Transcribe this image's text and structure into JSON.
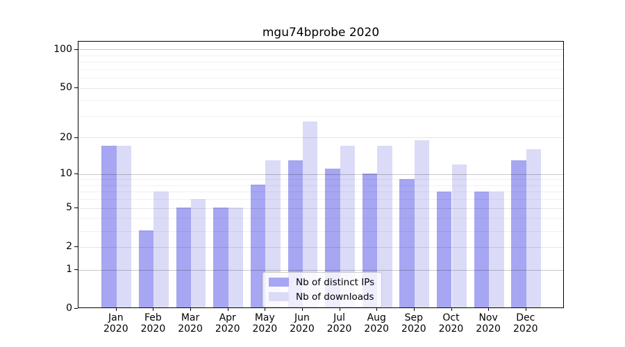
{
  "chart_data": {
    "type": "bar",
    "title": "mgu74bprobe 2020",
    "categories": [
      "Jan",
      "Feb",
      "Mar",
      "Apr",
      "May",
      "Jun",
      "Jul",
      "Aug",
      "Sep",
      "Oct",
      "Nov",
      "Dec"
    ],
    "x_year": "2020",
    "series": [
      {
        "name": "Nb of distinct IPs",
        "color": "#a6a6f2",
        "values": [
          17,
          3,
          5,
          5,
          8,
          13,
          11,
          10,
          9,
          7,
          7,
          13
        ]
      },
      {
        "name": "Nb of downloads",
        "color": "#dbdbf8",
        "values": [
          17,
          7,
          6,
          5,
          13,
          27,
          17,
          17,
          19,
          12,
          7,
          16
        ]
      }
    ],
    "yscale": "log1p",
    "ylim": [
      0,
      115
    ],
    "yticks": [
      0,
      1,
      2,
      5,
      10,
      20,
      50,
      100
    ],
    "minor_gridlines": [
      3,
      4,
      6,
      7,
      8,
      9,
      30,
      40,
      60,
      70,
      80,
      90
    ],
    "grid": true,
    "legend_position": "lower-center",
    "background_color": "#ffffff",
    "spine_color": "#000000"
  }
}
